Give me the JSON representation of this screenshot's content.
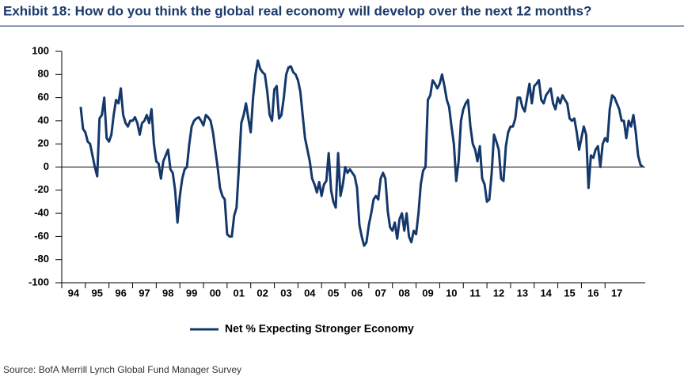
{
  "chart_data": {
    "type": "line",
    "title": "Exhibit 18: How do you think the global real economy will develop over the next 12 months?",
    "source": "Source:  BofA Merrill Lynch Global Fund Manager Survey",
    "x": [
      1994.8,
      1994.9,
      1995,
      1995.1,
      1995.2,
      1995.3,
      1995.4,
      1995.5,
      1995.6,
      1995.7,
      1995.8,
      1995.9,
      1996,
      1996.1,
      1996.2,
      1996.3,
      1996.4,
      1996.5,
      1996.6,
      1996.7,
      1996.8,
      1996.9,
      1997,
      1997.1,
      1997.2,
      1997.3,
      1997.4,
      1997.5,
      1997.6,
      1997.7,
      1997.8,
      1997.9,
      1998,
      1998.1,
      1998.2,
      1998.3,
      1998.4,
      1998.5,
      1998.6,
      1998.7,
      1998.8,
      1998.9,
      1999,
      1999.1,
      1999.2,
      1999.3,
      1999.4,
      1999.5,
      1999.6,
      1999.7,
      1999.8,
      1999.9,
      2000,
      2000.1,
      2000.2,
      2000.3,
      2000.4,
      2000.5,
      2000.6,
      2000.7,
      2000.8,
      2000.9,
      2001,
      2001.1,
      2001.2,
      2001.3,
      2001.4,
      2001.5,
      2001.6,
      2001.7,
      2001.8,
      2001.9,
      2002,
      2002.1,
      2002.2,
      2002.3,
      2002.4,
      2002.5,
      2002.6,
      2002.7,
      2002.8,
      2002.9,
      2003,
      2003.1,
      2003.2,
      2003.3,
      2003.4,
      2003.5,
      2003.6,
      2003.7,
      2003.8,
      2003.9,
      2004,
      2004.1,
      2004.2,
      2004.3,
      2004.4,
      2004.5,
      2004.6,
      2004.7,
      2004.8,
      2004.9,
      2005,
      2005.1,
      2005.2,
      2005.3,
      2005.4,
      2005.5,
      2005.6,
      2005.7,
      2005.8,
      2005.9,
      2006,
      2006.1,
      2006.2,
      2006.3,
      2006.4,
      2006.5,
      2006.6,
      2006.7,
      2006.8,
      2006.9,
      2007,
      2007.1,
      2007.2,
      2007.3,
      2007.4,
      2007.5,
      2007.6,
      2007.7,
      2007.8,
      2007.9,
      2008,
      2008.1,
      2008.2,
      2008.3,
      2008.4,
      2008.5,
      2008.6,
      2008.7,
      2008.8,
      2008.9,
      2009,
      2009.1,
      2009.2,
      2009.3,
      2009.4,
      2009.5,
      2009.6,
      2009.7,
      2009.8,
      2009.9,
      2010,
      2010.1,
      2010.2,
      2010.3,
      2010.4,
      2010.5,
      2010.6,
      2010.7,
      2010.8,
      2010.9,
      2011,
      2011.1,
      2011.2,
      2011.3,
      2011.4,
      2011.5,
      2011.6,
      2011.7,
      2011.8,
      2011.9,
      2012,
      2012.1,
      2012.2,
      2012.3,
      2012.4,
      2012.5,
      2012.6,
      2012.7,
      2012.8,
      2012.9,
      2013,
      2013.1,
      2013.2,
      2013.3,
      2013.4,
      2013.5,
      2013.6,
      2013.7,
      2013.8,
      2013.9,
      2014,
      2014.1,
      2014.2,
      2014.3,
      2014.4,
      2014.5,
      2014.6,
      2014.7,
      2014.8,
      2014.9,
      2015,
      2015.1,
      2015.2,
      2015.3,
      2015.4,
      2015.5,
      2015.6,
      2015.7,
      2015.8,
      2015.9,
      2016,
      2016.1,
      2016.2,
      2016.3,
      2016.4,
      2016.5,
      2016.6,
      2016.7,
      2016.8,
      2016.9,
      2017,
      2017.1,
      2017.2,
      2017.3,
      2017.4,
      2017.5,
      2017.6,
      2017.7,
      2017.8,
      2017.9,
      2018,
      2018.1,
      2018.2,
      2018.3,
      2018.4,
      2018.5,
      2018.6
    ],
    "series": [
      {
        "name": "Net % Expecting Stronger Economy",
        "color": "#14386b",
        "values": [
          52,
          33,
          30,
          22,
          20,
          10,
          0,
          -8,
          42,
          45,
          60,
          25,
          22,
          28,
          45,
          58,
          55,
          68,
          45,
          38,
          35,
          40,
          40,
          43,
          38,
          28,
          38,
          40,
          45,
          38,
          50,
          20,
          5,
          3,
          -10,
          5,
          10,
          15,
          -2,
          -5,
          -20,
          -48,
          -25,
          -10,
          -2,
          0,
          20,
          35,
          40,
          42,
          43,
          40,
          36,
          45,
          43,
          40,
          30,
          15,
          0,
          -18,
          -25,
          -28,
          -58,
          -60,
          -60,
          -42,
          -35,
          0,
          38,
          45,
          55,
          42,
          30,
          60,
          80,
          92,
          85,
          82,
          80,
          65,
          45,
          40,
          67,
          70,
          42,
          45,
          60,
          80,
          86,
          87,
          82,
          80,
          75,
          65,
          45,
          25,
          15,
          5,
          -10,
          -15,
          -22,
          -13,
          -25,
          -15,
          -12,
          12,
          -20,
          -30,
          -35,
          12,
          -25,
          -15,
          0,
          -5,
          -2,
          -5,
          -8,
          -18,
          -50,
          -60,
          -68,
          -65,
          -50,
          -40,
          -28,
          -25,
          -28,
          -10,
          -5,
          -10,
          -38,
          -52,
          -55,
          -48,
          -62,
          -45,
          -40,
          -55,
          -40,
          -60,
          -65,
          -55,
          -58,
          -40,
          -15,
          -3,
          0,
          58,
          62,
          75,
          72,
          68,
          72,
          80,
          70,
          58,
          52,
          35,
          20,
          -12,
          5,
          40,
          50,
          55,
          58,
          35,
          20,
          15,
          5,
          18,
          -10,
          -15,
          -30,
          -28,
          -5,
          28,
          22,
          15,
          -10,
          -12,
          18,
          30,
          35,
          35,
          42,
          60,
          60,
          52,
          48,
          60,
          72,
          55,
          70,
          72,
          75,
          58,
          55,
          62,
          65,
          68,
          55,
          50,
          60,
          55,
          62,
          58,
          55,
          42,
          40,
          42,
          30,
          15,
          25,
          35,
          28,
          -18,
          10,
          8,
          15,
          18,
          0,
          20,
          25,
          22,
          50,
          62,
          60,
          55,
          50,
          40,
          40,
          25,
          40,
          35,
          45,
          30,
          10,
          2,
          0
        ]
      }
    ],
    "xlim": [
      1994,
      2018.7
    ],
    "xticks": [
      {
        "value": 1994,
        "label": "94"
      },
      {
        "value": 1995,
        "label": "95"
      },
      {
        "value": 1996,
        "label": "96"
      },
      {
        "value": 1997,
        "label": "97"
      },
      {
        "value": 1998,
        "label": "98"
      },
      {
        "value": 1999,
        "label": "99"
      },
      {
        "value": 2000,
        "label": "00"
      },
      {
        "value": 2001,
        "label": "01"
      },
      {
        "value": 2002,
        "label": "02"
      },
      {
        "value": 2003,
        "label": "03"
      },
      {
        "value": 2004,
        "label": "04"
      },
      {
        "value": 2005,
        "label": "05"
      },
      {
        "value": 2006,
        "label": "06"
      },
      {
        "value": 2007,
        "label": "07"
      },
      {
        "value": 2008,
        "label": "08"
      },
      {
        "value": 2009,
        "label": "09"
      },
      {
        "value": 2010,
        "label": "10"
      },
      {
        "value": 2011,
        "label": "11"
      },
      {
        "value": 2012,
        "label": "12"
      },
      {
        "value": 2013,
        "label": "13"
      },
      {
        "value": 2014,
        "label": "14"
      },
      {
        "value": 2015,
        "label": "15"
      },
      {
        "value": 2016,
        "label": "16"
      },
      {
        "value": 2017,
        "label": "17"
      }
    ],
    "ylim": [
      -100,
      100
    ],
    "yticks": [
      100,
      80,
      60,
      40,
      20,
      0,
      -20,
      -40,
      -60,
      -80,
      -100
    ],
    "grid": false
  }
}
